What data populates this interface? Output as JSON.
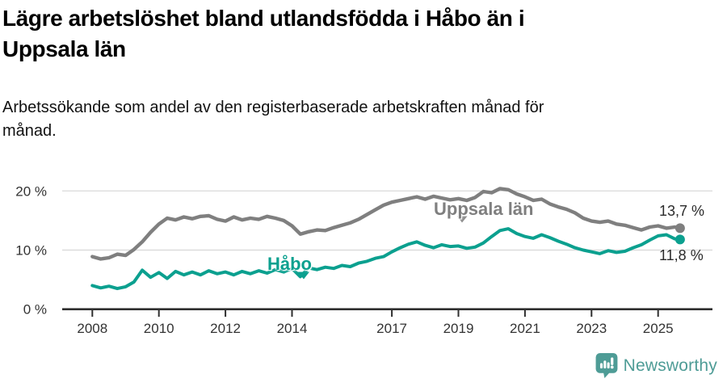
{
  "header": {
    "title_lines": [
      "Lägre arbetslöshet bland utlandsfödda i Håbo än i",
      "Uppsala län"
    ],
    "subtitle_lines": [
      "Arbetssökande som andel av den registerbaserade arbetskraften månad för",
      "månad."
    ]
  },
  "chart_data": {
    "type": "line",
    "title": "Lägre arbetslöshet bland utlandsfödda i Håbo än i Uppsala län",
    "subtitle": "Arbetssökande som andel av den registerbaserade arbetskraften månad för månad.",
    "unit": "%",
    "grid": "horizontal",
    "ylim": [
      0,
      22
    ],
    "xlim": [
      2007.1,
      2026.6
    ],
    "y_ticks": [
      {
        "value": 0,
        "label": "0 %"
      },
      {
        "value": 10,
        "label": "10 %"
      },
      {
        "value": 20,
        "label": "20 %"
      }
    ],
    "x_ticks": [
      {
        "value": 2008,
        "label": "2008"
      },
      {
        "value": 2010,
        "label": "2010"
      },
      {
        "value": 2012,
        "label": "2012"
      },
      {
        "value": 2014,
        "label": "2014"
      },
      {
        "value": 2017,
        "label": "2017"
      },
      {
        "value": 2019,
        "label": "2019"
      },
      {
        "value": 2021,
        "label": "2021"
      },
      {
        "value": 2023,
        "label": "2023"
      },
      {
        "value": 2025,
        "label": "2025"
      }
    ],
    "x": [
      2008,
      2008.25,
      2008.5,
      2008.75,
      2009,
      2009.25,
      2009.5,
      2009.75,
      2010,
      2010.25,
      2010.5,
      2010.75,
      2011,
      2011.25,
      2011.5,
      2011.75,
      2012,
      2012.25,
      2012.5,
      2012.75,
      2013,
      2013.25,
      2013.5,
      2013.75,
      2014,
      2014.25,
      2014.5,
      2014.75,
      2015,
      2015.25,
      2015.5,
      2015.75,
      2016,
      2016.25,
      2016.5,
      2016.75,
      2017,
      2017.25,
      2017.5,
      2017.75,
      2018,
      2018.25,
      2018.5,
      2018.75,
      2019,
      2019.25,
      2019.5,
      2019.75,
      2020,
      2020.25,
      2020.5,
      2020.75,
      2021,
      2021.25,
      2021.5,
      2021.75,
      2022,
      2022.25,
      2022.5,
      2022.75,
      2023,
      2023.25,
      2023.5,
      2023.75,
      2024,
      2024.25,
      2024.5,
      2024.75,
      2025,
      2025.25,
      2025.5,
      2025.66
    ],
    "series": [
      {
        "name": "Uppsala län",
        "color": "#7f7f7f",
        "end_label": "13,7 %",
        "end_value": 13.7,
        "values": [
          8.9,
          8.5,
          8.7,
          9.3,
          9.1,
          10.1,
          11.4,
          13.0,
          14.4,
          15.4,
          15.1,
          15.6,
          15.3,
          15.7,
          15.8,
          15.2,
          14.9,
          15.6,
          15.1,
          15.4,
          15.2,
          15.7,
          15.4,
          15.0,
          14.1,
          12.7,
          13.1,
          13.4,
          13.3,
          13.8,
          14.2,
          14.6,
          15.2,
          16.0,
          16.8,
          17.6,
          18.1,
          18.4,
          18.7,
          19.0,
          18.6,
          19.1,
          18.8,
          18.5,
          18.7,
          18.4,
          18.9,
          19.9,
          19.7,
          20.4,
          20.2,
          19.5,
          19.0,
          18.4,
          18.6,
          17.8,
          17.3,
          16.9,
          16.3,
          15.4,
          14.9,
          14.7,
          14.9,
          14.4,
          14.2,
          13.8,
          13.4,
          13.9,
          14.1,
          13.7,
          13.9,
          13.7
        ]
      },
      {
        "name": "Håbo",
        "color": "#0ba08f",
        "end_label": "11,8 %",
        "end_value": 11.8,
        "values": [
          4.0,
          3.6,
          3.9,
          3.5,
          3.8,
          4.6,
          6.6,
          5.4,
          6.2,
          5.2,
          6.4,
          5.8,
          6.3,
          5.8,
          6.5,
          6.0,
          6.3,
          5.8,
          6.4,
          6.0,
          6.5,
          6.1,
          6.7,
          6.3,
          6.9,
          5.5,
          7.0,
          6.7,
          7.1,
          6.9,
          7.4,
          7.2,
          7.8,
          8.1,
          8.6,
          8.9,
          9.7,
          10.4,
          11.0,
          11.4,
          10.8,
          10.4,
          10.9,
          10.6,
          10.7,
          10.3,
          10.5,
          11.2,
          12.3,
          13.3,
          13.6,
          12.8,
          12.3,
          12.0,
          12.6,
          12.1,
          11.5,
          11.0,
          10.4,
          10.0,
          9.7,
          9.4,
          9.9,
          9.6,
          9.8,
          10.4,
          10.9,
          11.7,
          12.4,
          12.6,
          11.9,
          11.8
        ]
      }
    ],
    "colors": {
      "gridline": "#dcdcdc",
      "axis": "#2f2f2f",
      "tick_text": "#333333",
      "value_label_text": "#2b2b2b"
    }
  },
  "footer": {
    "brand": "Newsworthy",
    "brand_color": "#4e9c96"
  }
}
